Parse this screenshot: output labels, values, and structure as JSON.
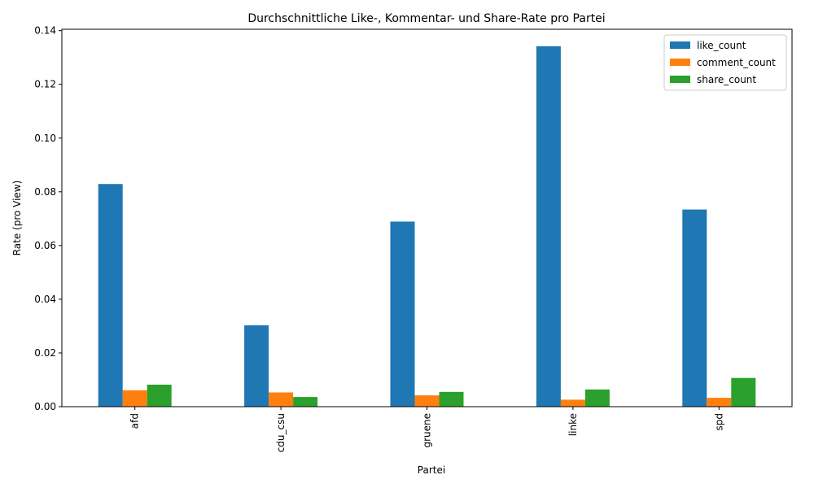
{
  "chart_data": {
    "type": "bar",
    "title": "Durchschnittliche Like-, Kommentar- und Share-Rate pro Partei",
    "xlabel": "Partei",
    "ylabel": "Rate (pro View)",
    "categories": [
      "afd",
      "cdu_csu",
      "gruene",
      "linke",
      "spd"
    ],
    "ylim": [
      0,
      0.1405
    ],
    "yticks": [
      0.0,
      0.02,
      0.04,
      0.06,
      0.08,
      0.1,
      0.12,
      0.14
    ],
    "ytick_labels": [
      "0.00",
      "0.02",
      "0.04",
      "0.06",
      "0.08",
      "0.10",
      "0.12",
      "0.14"
    ],
    "grid": false,
    "legend_position": "top-right",
    "series": [
      {
        "name": "like_count",
        "color": "#1f77b4",
        "values": [
          0.0829,
          0.0303,
          0.0689,
          0.1342,
          0.0734
        ]
      },
      {
        "name": "comment_count",
        "color": "#ff7f0e",
        "values": [
          0.0061,
          0.0053,
          0.0042,
          0.0026,
          0.0033
        ]
      },
      {
        "name": "share_count",
        "color": "#2ca02c",
        "values": [
          0.0082,
          0.0036,
          0.0055,
          0.0064,
          0.0107
        ]
      }
    ]
  }
}
